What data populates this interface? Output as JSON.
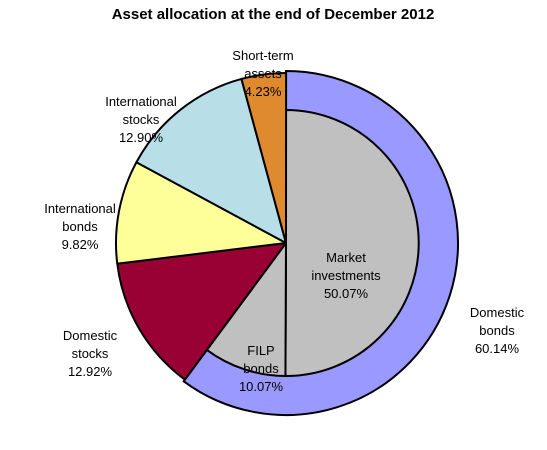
{
  "chart_data": {
    "type": "pie",
    "title": "Asset allocation at the end of December 2012",
    "inner_slices": [
      {
        "key": "market",
        "label": [
          "Market",
          "investments"
        ],
        "value": 50.07,
        "value_label": "50.07%",
        "color": "#C0C0C0"
      },
      {
        "key": "filp",
        "label": [
          "FILP",
          "bonds"
        ],
        "value": 10.07,
        "value_label": "10.07%",
        "color": "#C0C0C0"
      },
      {
        "key": "domestic_stocks",
        "label": [
          "Domestic",
          "stocks"
        ],
        "value": 12.92,
        "value_label": "12.92%",
        "color": "#990033"
      },
      {
        "key": "international_bonds",
        "label": [
          "International",
          "bonds"
        ],
        "value": 9.82,
        "value_label": "9.82%",
        "color": "#FFFF99"
      },
      {
        "key": "international_stocks",
        "label": [
          "International",
          "stocks"
        ],
        "value": 12.9,
        "value_label": "12.90%",
        "color": "#B8DFE8"
      },
      {
        "key": "short_term",
        "label": [
          "Short-term",
          "assets"
        ],
        "value": 4.23,
        "value_label": "4.23%",
        "color": "#E08A30"
      }
    ],
    "outer_ring": {
      "label": [
        "Domestic",
        "bonds"
      ],
      "value": 60.14,
      "value_label": "60.14%",
      "color": "#9999FF",
      "covers": [
        "market",
        "filp"
      ]
    }
  }
}
